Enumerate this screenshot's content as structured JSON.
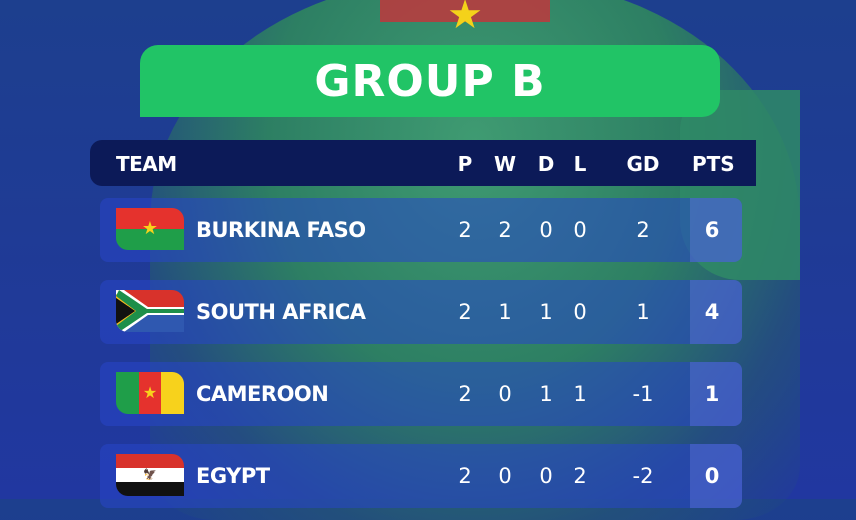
{
  "title": "GROUP B",
  "columns": {
    "team": "TEAM",
    "p": "P",
    "w": "W",
    "d": "D",
    "l": "L",
    "gd": "GD",
    "pts": "PTS"
  },
  "colors": {
    "banner": "#21c466",
    "header": "#0c1a58"
  },
  "rows": [
    {
      "team": "BURKINA FASO",
      "flag": "burkina-faso-flag",
      "p": "2",
      "w": "2",
      "d": "0",
      "l": "0",
      "gd": "2",
      "pts": "6"
    },
    {
      "team": "SOUTH AFRICA",
      "flag": "south-africa-flag",
      "p": "2",
      "w": "1",
      "d": "1",
      "l": "0",
      "gd": "1",
      "pts": "4"
    },
    {
      "team": "CAMEROON",
      "flag": "cameroon-flag",
      "p": "2",
      "w": "0",
      "d": "1",
      "l": "1",
      "gd": "-1",
      "pts": "1"
    },
    {
      "team": "EGYPT",
      "flag": "egypt-flag",
      "p": "2",
      "w": "0",
      "d": "0",
      "l": "2",
      "gd": "-2",
      "pts": "0"
    }
  ]
}
